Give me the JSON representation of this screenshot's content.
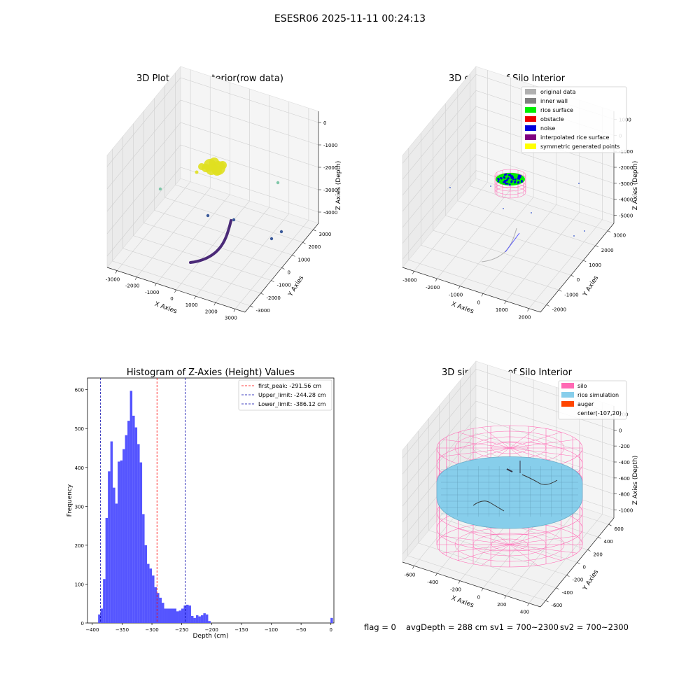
{
  "figure": {
    "suptitle": "ESESR06 2025-11-11 00:24:13",
    "status_line": {
      "flag": "flag = 0",
      "avg_depth": "avgDepth = 288 cm",
      "sv1": "sv1 = 700~2300",
      "sv2": "sv2 = 700~2300"
    }
  },
  "chart_data": [
    {
      "type": "scatter",
      "projection": "3d",
      "title": "3D Plot of Silo Interior(row data)",
      "xlabel": "X Axies",
      "ylabel": "Y Axies",
      "zlabel": "Z Axies (Depth)",
      "x_ticks": [
        "-3000",
        "-2000",
        "-1000",
        "0",
        "1000",
        "2000",
        "3000"
      ],
      "y_ticks": [
        "-3000",
        "-2000",
        "-1000",
        "0",
        "1000",
        "2000",
        "3000"
      ],
      "z_ticks": [
        "0",
        "-1000",
        "-2000",
        "-3000",
        "-4000"
      ],
      "colors": {
        "cluster": "#e0e020",
        "arc": "#4b2a78",
        "teal": "#7fc6a8",
        "blue": "#3b5a9a"
      }
    },
    {
      "type": "scatter",
      "projection": "3d",
      "title": "3D classify of Silo Interior",
      "xlabel": "X Axies",
      "ylabel": "Y Axies",
      "zlabel": "Z Axies (Depth)",
      "x_ticks": [
        "-3000",
        "-2000",
        "-1000",
        "0",
        "1000",
        "2000"
      ],
      "y_ticks": [
        "-2000",
        "-1000",
        "0",
        "1000",
        "2000",
        "3000"
      ],
      "z_ticks": [
        "1000",
        "0",
        "-1000",
        "-2000",
        "-3000",
        "-4000",
        "-5000"
      ],
      "legend_position": "top-right",
      "legend": [
        {
          "label": "original data",
          "color": "#b0b0b0"
        },
        {
          "label": "inner wall",
          "color": "#808080"
        },
        {
          "label": "rice surface",
          "color": "#00ee00"
        },
        {
          "label": "obstacle",
          "color": "#ee0000"
        },
        {
          "label": "noise",
          "color": "#0000dd"
        },
        {
          "label": "interpolated rice surface",
          "color": "#800080"
        },
        {
          "label": "symmetric generated points",
          "color": "#ffff00"
        }
      ]
    },
    {
      "type": "bar",
      "title": "Histogram of Z-Axies (Height) Values",
      "xlabel": "Depth (cm)",
      "ylabel": "Frequency",
      "xlim": [
        -408,
        5
      ],
      "ylim": [
        0,
        630
      ],
      "x_ticks": [
        -400,
        -350,
        -300,
        -250,
        -200,
        -150,
        -100,
        -50,
        0
      ],
      "y_ticks": [
        0,
        100,
        200,
        300,
        400,
        500,
        600
      ],
      "bar_color": "#5555ff",
      "bin_width": 4.1,
      "bins_start": [
        -390.2,
        -386.1,
        -382,
        -377.9,
        -373.8,
        -369.7,
        -365.6,
        -361.5,
        -357.4,
        -353.3,
        -349.2,
        -345.1,
        -341,
        -336.9,
        -332.8,
        -328.7,
        -324.6,
        -320.5,
        -316.4,
        -312.3,
        -308.2,
        -304.1,
        -300,
        -295.9,
        -291.8,
        -287.7,
        -283.6,
        -279.5,
        -275.4,
        -271.3,
        -267.2,
        -263.1,
        -259,
        -254.9,
        -250.8,
        -246.7,
        -242.6,
        -238.5,
        -234.4,
        -230.3,
        -226.2,
        -222.1,
        -218,
        -213.9,
        -209.8,
        -205.7,
        -201.6,
        -197.5,
        -193.4,
        -189.3,
        -185.2,
        -181.1,
        -177,
        -172.9,
        -168.8,
        -164.7,
        -160.6,
        -156.5,
        -152.4,
        -148.3,
        -144.2,
        -140.1,
        -136,
        -131.9,
        -127.8,
        -123.7,
        -119.6,
        -115.5,
        -111.4,
        -107.3,
        -103.2,
        -99.1,
        -95,
        -90.9,
        -86.8,
        -82.7,
        -78.6,
        -74.5,
        -70.4,
        -66.3,
        -62.2,
        -58.1,
        -54,
        -49.9,
        -45.8,
        -41.7,
        -37.6,
        -33.5,
        -29.4,
        -25.3,
        -21.2,
        -17.1,
        -13,
        -8.9,
        -4.8,
        -0.7
      ],
      "values": [
        22,
        37,
        113,
        270,
        390,
        467,
        348,
        307,
        415,
        418,
        447,
        483,
        520,
        597,
        533,
        503,
        460,
        413,
        280,
        200,
        152,
        140,
        122,
        92,
        77,
        65,
        52,
        37,
        37,
        37,
        37,
        37,
        30,
        32,
        37,
        45,
        47,
        45,
        18,
        13,
        20,
        17,
        20,
        25,
        22,
        5,
        0,
        0,
        0,
        0,
        0,
        0,
        0,
        0,
        0,
        0,
        0,
        0,
        0,
        0,
        0,
        0,
        0,
        0,
        0,
        0,
        0,
        0,
        0,
        0,
        0,
        0,
        0,
        0,
        0,
        0,
        0,
        0,
        0,
        0,
        0,
        0,
        0,
        0,
        0,
        0,
        0,
        0,
        0,
        0,
        0,
        0,
        0,
        0,
        0,
        13
      ],
      "vlines": [
        {
          "label": "first_peak: -291.56 cm",
          "x": -291.56,
          "color": "#ff0000"
        },
        {
          "label": "Upper_limit: -244.28 cm",
          "x": -244.28,
          "color": "#0000aa"
        },
        {
          "label": "Lower_limit: -386.12 cm",
          "x": -386.12,
          "color": "#0000aa"
        }
      ],
      "legend_position": "top-right"
    },
    {
      "type": "scatter",
      "projection": "3d",
      "title": "3D simulation of Silo Interior",
      "xlabel": "X Axies",
      "ylabel": "Y Axies",
      "zlabel": "Z Axies (Depth)",
      "x_ticks": [
        "-600",
        "-400",
        "-200",
        "0",
        "200",
        "400"
      ],
      "y_ticks": [
        "-600",
        "-400",
        "-200",
        "0",
        "200",
        "400",
        "600"
      ],
      "z_ticks": [
        "200",
        "0",
        "-200",
        "-400",
        "-600",
        "-800",
        "-1000"
      ],
      "legend_position": "top-right",
      "legend": [
        {
          "label": "silo",
          "color": "#ff69b4"
        },
        {
          "label": "rice simulation",
          "color": "#87ceeb"
        },
        {
          "label": "auger",
          "color": "#ff4500"
        },
        {
          "label": "center(-107,20)",
          "color": ""
        }
      ]
    }
  ]
}
